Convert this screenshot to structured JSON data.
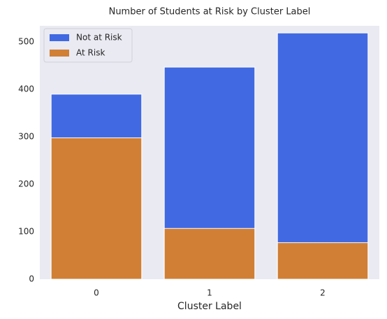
{
  "chart_data": {
    "type": "bar",
    "title": "Number of Students at Risk by Cluster Label",
    "x_label": "Cluster Label",
    "categories": [
      "0",
      "1",
      "2"
    ],
    "series": [
      {
        "name": "Not at Risk",
        "color": "#4169e1",
        "values": [
          390,
          447,
          519
        ]
      },
      {
        "name": "At Risk",
        "color": "#d07f35",
        "values": [
          298,
          107,
          77
        ]
      }
    ],
    "ylim": [
      0,
      534
    ],
    "yticks": [
      0,
      100,
      200,
      300,
      400,
      500
    ],
    "grid": false,
    "legend": "upper-left"
  }
}
